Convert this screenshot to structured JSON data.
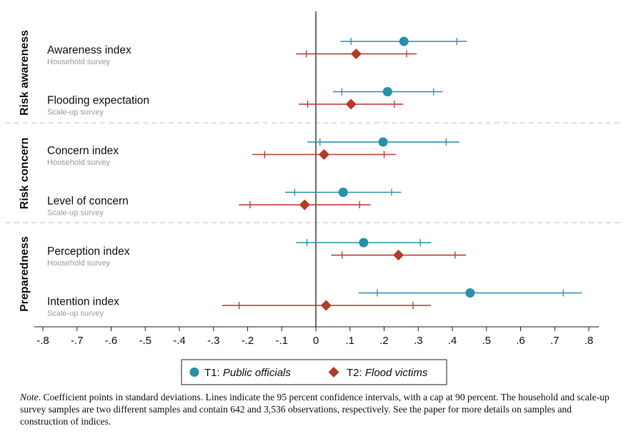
{
  "chart_data": {
    "type": "coefficient-plot",
    "x_ticks": [
      -0.8,
      -0.7,
      -0.6,
      -0.5,
      -0.4,
      -0.3,
      -0.2,
      -0.1,
      0,
      0.1,
      0.2,
      0.3,
      0.4,
      0.5,
      0.6,
      0.7,
      0.8
    ],
    "x_tick_labels": [
      "-.8",
      "-.7",
      "-.6",
      "-.5",
      "-.4",
      "-.3",
      "-.2",
      "-.1",
      "0",
      ".1",
      ".2",
      ".3",
      ".4",
      ".5",
      ".6",
      ".7",
      ".8"
    ],
    "xlim": [
      -0.83,
      0.83
    ],
    "reference_line": 0,
    "groups": [
      {
        "label": "Risk awareness",
        "items": [
          0,
          1
        ]
      },
      {
        "label": "Risk concern",
        "items": [
          2,
          3
        ]
      },
      {
        "label": "Preparedness",
        "items": [
          4,
          5
        ]
      }
    ],
    "items": [
      {
        "label": "Awareness index",
        "sublabel": "Household survey"
      },
      {
        "label": "Flooding expectation",
        "sublabel": "Scale-up survey"
      },
      {
        "label": "Concern index",
        "sublabel": "Household survey"
      },
      {
        "label": "Level of concern",
        "sublabel": "Scale-up survey"
      },
      {
        "label": "Perception index",
        "sublabel": "Household survey"
      },
      {
        "label": "Intention index",
        "sublabel": "Scale-up survey"
      }
    ],
    "series": [
      {
        "name_prefix": "T1: ",
        "name": "Public officials",
        "marker": "circle",
        "color": "#2a8fa8",
        "points": [
          {
            "est": 0.258,
            "ci95": [
              0.072,
              0.442
            ],
            "ci90": [
              0.103,
              0.413
            ]
          },
          {
            "est": 0.21,
            "ci95": [
              0.05,
              0.372
            ],
            "ci90": [
              0.076,
              0.345
            ]
          },
          {
            "est": 0.197,
            "ci95": [
              -0.025,
              0.42
            ],
            "ci90": [
              0.012,
              0.382
            ]
          },
          {
            "est": 0.08,
            "ci95": [
              -0.09,
              0.25
            ],
            "ci90": [
              -0.062,
              0.222
            ]
          },
          {
            "est": 0.14,
            "ci95": [
              -0.058,
              0.338
            ],
            "ci90": [
              -0.026,
              0.306
            ]
          },
          {
            "est": 0.452,
            "ci95": [
              0.125,
              0.78
            ],
            "ci90": [
              0.18,
              0.725
            ]
          }
        ]
      },
      {
        "name_prefix": "T2: ",
        "name": "Flood victims",
        "marker": "diamond",
        "color": "#b5392b",
        "points": [
          {
            "est": 0.118,
            "ci95": [
              -0.058,
              0.295
            ],
            "ci90": [
              -0.028,
              0.266
            ]
          },
          {
            "est": 0.103,
            "ci95": [
              -0.05,
              0.256
            ],
            "ci90": [
              -0.024,
              0.23
            ]
          },
          {
            "est": 0.024,
            "ci95": [
              -0.186,
              0.234
            ],
            "ci90": [
              -0.15,
              0.2
            ]
          },
          {
            "est": -0.033,
            "ci95": [
              -0.226,
              0.16
            ],
            "ci90": [
              -0.193,
              0.128
            ]
          },
          {
            "est": 0.242,
            "ci95": [
              0.045,
              0.44
            ],
            "ci90": [
              0.077,
              0.408
            ]
          },
          {
            "est": 0.03,
            "ci95": [
              -0.275,
              0.337
            ],
            "ci90": [
              -0.225,
              0.285
            ]
          }
        ]
      }
    ],
    "legend_position": "bottom-center"
  },
  "note": {
    "label": "Note",
    "text": ".  Coefficient points in standard deviations. Lines indicate the 95 percent confidence intervals, with a cap at 90 percent. The household and scale-up survey samples are two different samples and contain 642 and 3,536 observations, respectively. See the paper for more details on samples and construction of indices."
  }
}
